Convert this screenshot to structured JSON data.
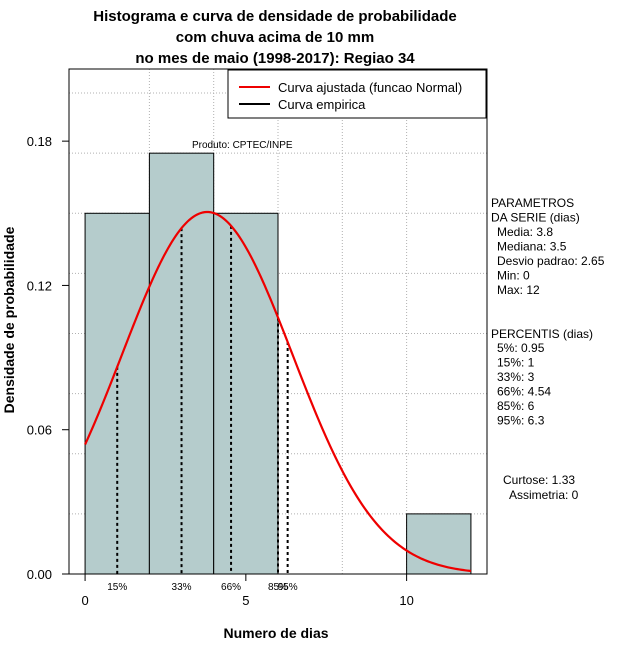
{
  "chart_data": {
    "type": "bar",
    "title_lines": [
      "Histograma e curva de densidade de probabilidade",
      "com chuva acima de 10 mm",
      "no mes de maio (1998-2017): Regiao 34"
    ],
    "xlabel": "Numero de dias",
    "ylabel": "Densidade de probabilidade",
    "xlim": [
      -0.5,
      12.5
    ],
    "ylim": [
      0,
      0.21
    ],
    "x_ticks": [
      0,
      5,
      10
    ],
    "y_ticks": [
      0.0,
      0.06,
      0.12,
      0.18
    ],
    "y_tick_labels": [
      "0.00",
      "0.06",
      "0.12",
      "0.18"
    ],
    "bars": [
      {
        "x0": 0,
        "x1": 2,
        "density": 0.15
      },
      {
        "x0": 2,
        "x1": 4,
        "density": 0.175
      },
      {
        "x0": 4,
        "x1": 6,
        "density": 0.15
      },
      {
        "x0": 10,
        "x1": 12,
        "density": 0.025
      }
    ],
    "bar_color": "#b5cccc",
    "normal_curve": {
      "mean": 3.8,
      "sd": 2.65,
      "x_range": [
        0,
        12
      ],
      "color": "#ee0000"
    },
    "percentile_lines": [
      {
        "label": "15%",
        "x": 1
      },
      {
        "label": "33%",
        "x": 3
      },
      {
        "label": "66%",
        "x": 4.54
      },
      {
        "label": "85%",
        "x": 6
      },
      {
        "label": "95%",
        "x": 6.3
      }
    ],
    "legend": {
      "position": "top-right",
      "entries": [
        {
          "label": "Curva ajustada (funcao Normal)",
          "color": "#ee0000"
        },
        {
          "label": "Curva empirica",
          "color": "#000000"
        }
      ]
    },
    "annotation": "Produto: CPTEC/INPE",
    "grid": true
  },
  "side_panel": {
    "parametros_lines": [
      "PARAMETROS",
      "DA SERIE (dias)"
    ],
    "parametros_values": [
      "Media: 3.8",
      "Mediana: 3.5",
      "Desvio padrao: 2.65",
      "Min: 0",
      "Max: 12"
    ],
    "percentis_title": "PERCENTIS (dias)",
    "percentis_values": [
      "5%: 0.95",
      "15%: 1",
      "33%: 3",
      "66%: 4.54",
      "85%: 6",
      "95%: 6.3"
    ],
    "curtose": "Curtose: 1.33",
    "assimetria": "Assimetria: 0"
  }
}
